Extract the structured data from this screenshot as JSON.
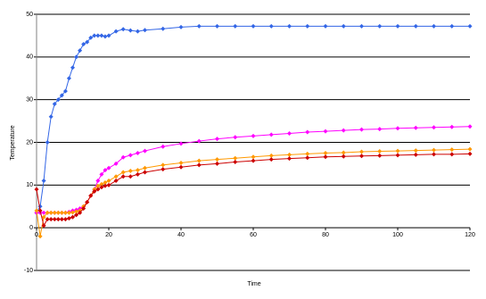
{
  "chart_data": {
    "type": "line",
    "x_label": "Time",
    "y_label": "Temperature",
    "x": [
      0,
      1,
      2,
      3,
      4,
      5,
      6,
      7,
      8,
      9,
      10,
      11,
      12,
      13,
      14,
      15,
      16,
      17,
      18,
      19,
      20,
      22,
      24,
      26,
      28,
      30,
      35,
      40,
      45,
      50,
      55,
      60,
      65,
      70,
      75,
      80,
      85,
      90,
      95,
      100,
      105,
      110,
      115,
      120
    ],
    "series": [
      {
        "color": "#3366e6",
        "values": [
          3.5,
          5,
          11,
          20,
          26,
          29,
          30,
          31,
          32,
          35,
          37.5,
          40,
          41.5,
          43,
          43.5,
          44.5,
          45,
          45,
          45,
          44.8,
          45,
          46,
          46.5,
          46.2,
          46,
          46.3,
          46.6,
          47,
          47.2,
          47.2,
          47.2,
          47.2,
          47.2,
          47.2,
          47.2,
          47.2,
          47.2,
          47.2,
          47.2,
          47.2,
          47.2,
          47.2,
          47.2,
          47.2
        ]
      },
      {
        "color": "#ff00ff",
        "values": [
          3.5,
          3.5,
          3.5,
          3.5,
          3.5,
          3.5,
          3.5,
          3.5,
          3.5,
          3.7,
          4,
          4.2,
          4.5,
          5,
          6,
          7.5,
          9,
          11,
          12.5,
          13.5,
          14,
          15,
          16.5,
          17,
          17.5,
          18,
          19,
          19.7,
          20.3,
          20.8,
          21.2,
          21.5,
          21.8,
          22.1,
          22.4,
          22.6,
          22.8,
          23,
          23.1,
          23.3,
          23.4,
          23.5,
          23.6,
          23.7
        ]
      },
      {
        "color": "#ff9900",
        "values": [
          4,
          -2,
          2.5,
          3.5,
          3.5,
          3.5,
          3.5,
          3.5,
          3.5,
          3.5,
          3.6,
          3.8,
          4,
          5,
          6,
          7.5,
          9,
          9.8,
          10.2,
          10.6,
          11,
          12,
          13,
          13.3,
          13.5,
          14,
          14.7,
          15.2,
          15.7,
          16,
          16.3,
          16.6,
          16.9,
          17.1,
          17.3,
          17.5,
          17.6,
          17.8,
          17.9,
          18,
          18.1,
          18.2,
          18.3,
          18.4
        ]
      },
      {
        "color": "#cc0000",
        "values": [
          9,
          4,
          0.5,
          2,
          2,
          2,
          2,
          2,
          2,
          2.2,
          2.5,
          3,
          3.5,
          4.5,
          6,
          7.5,
          8.5,
          9,
          9.5,
          9.8,
          10,
          11,
          12,
          12,
          12.5,
          13,
          13.7,
          14.2,
          14.7,
          15,
          15.4,
          15.7,
          16,
          16.2,
          16.4,
          16.6,
          16.7,
          16.8,
          16.9,
          17,
          17.1,
          17.2,
          17.2,
          17.3
        ]
      }
    ],
    "xlim": [
      0,
      120
    ],
    "xticks": [
      0,
      20,
      40,
      60,
      80,
      100,
      120
    ],
    "ylim": [
      -10,
      50
    ],
    "yticks": [
      -10,
      0,
      10,
      20,
      30,
      40,
      50
    ],
    "grid": true
  }
}
